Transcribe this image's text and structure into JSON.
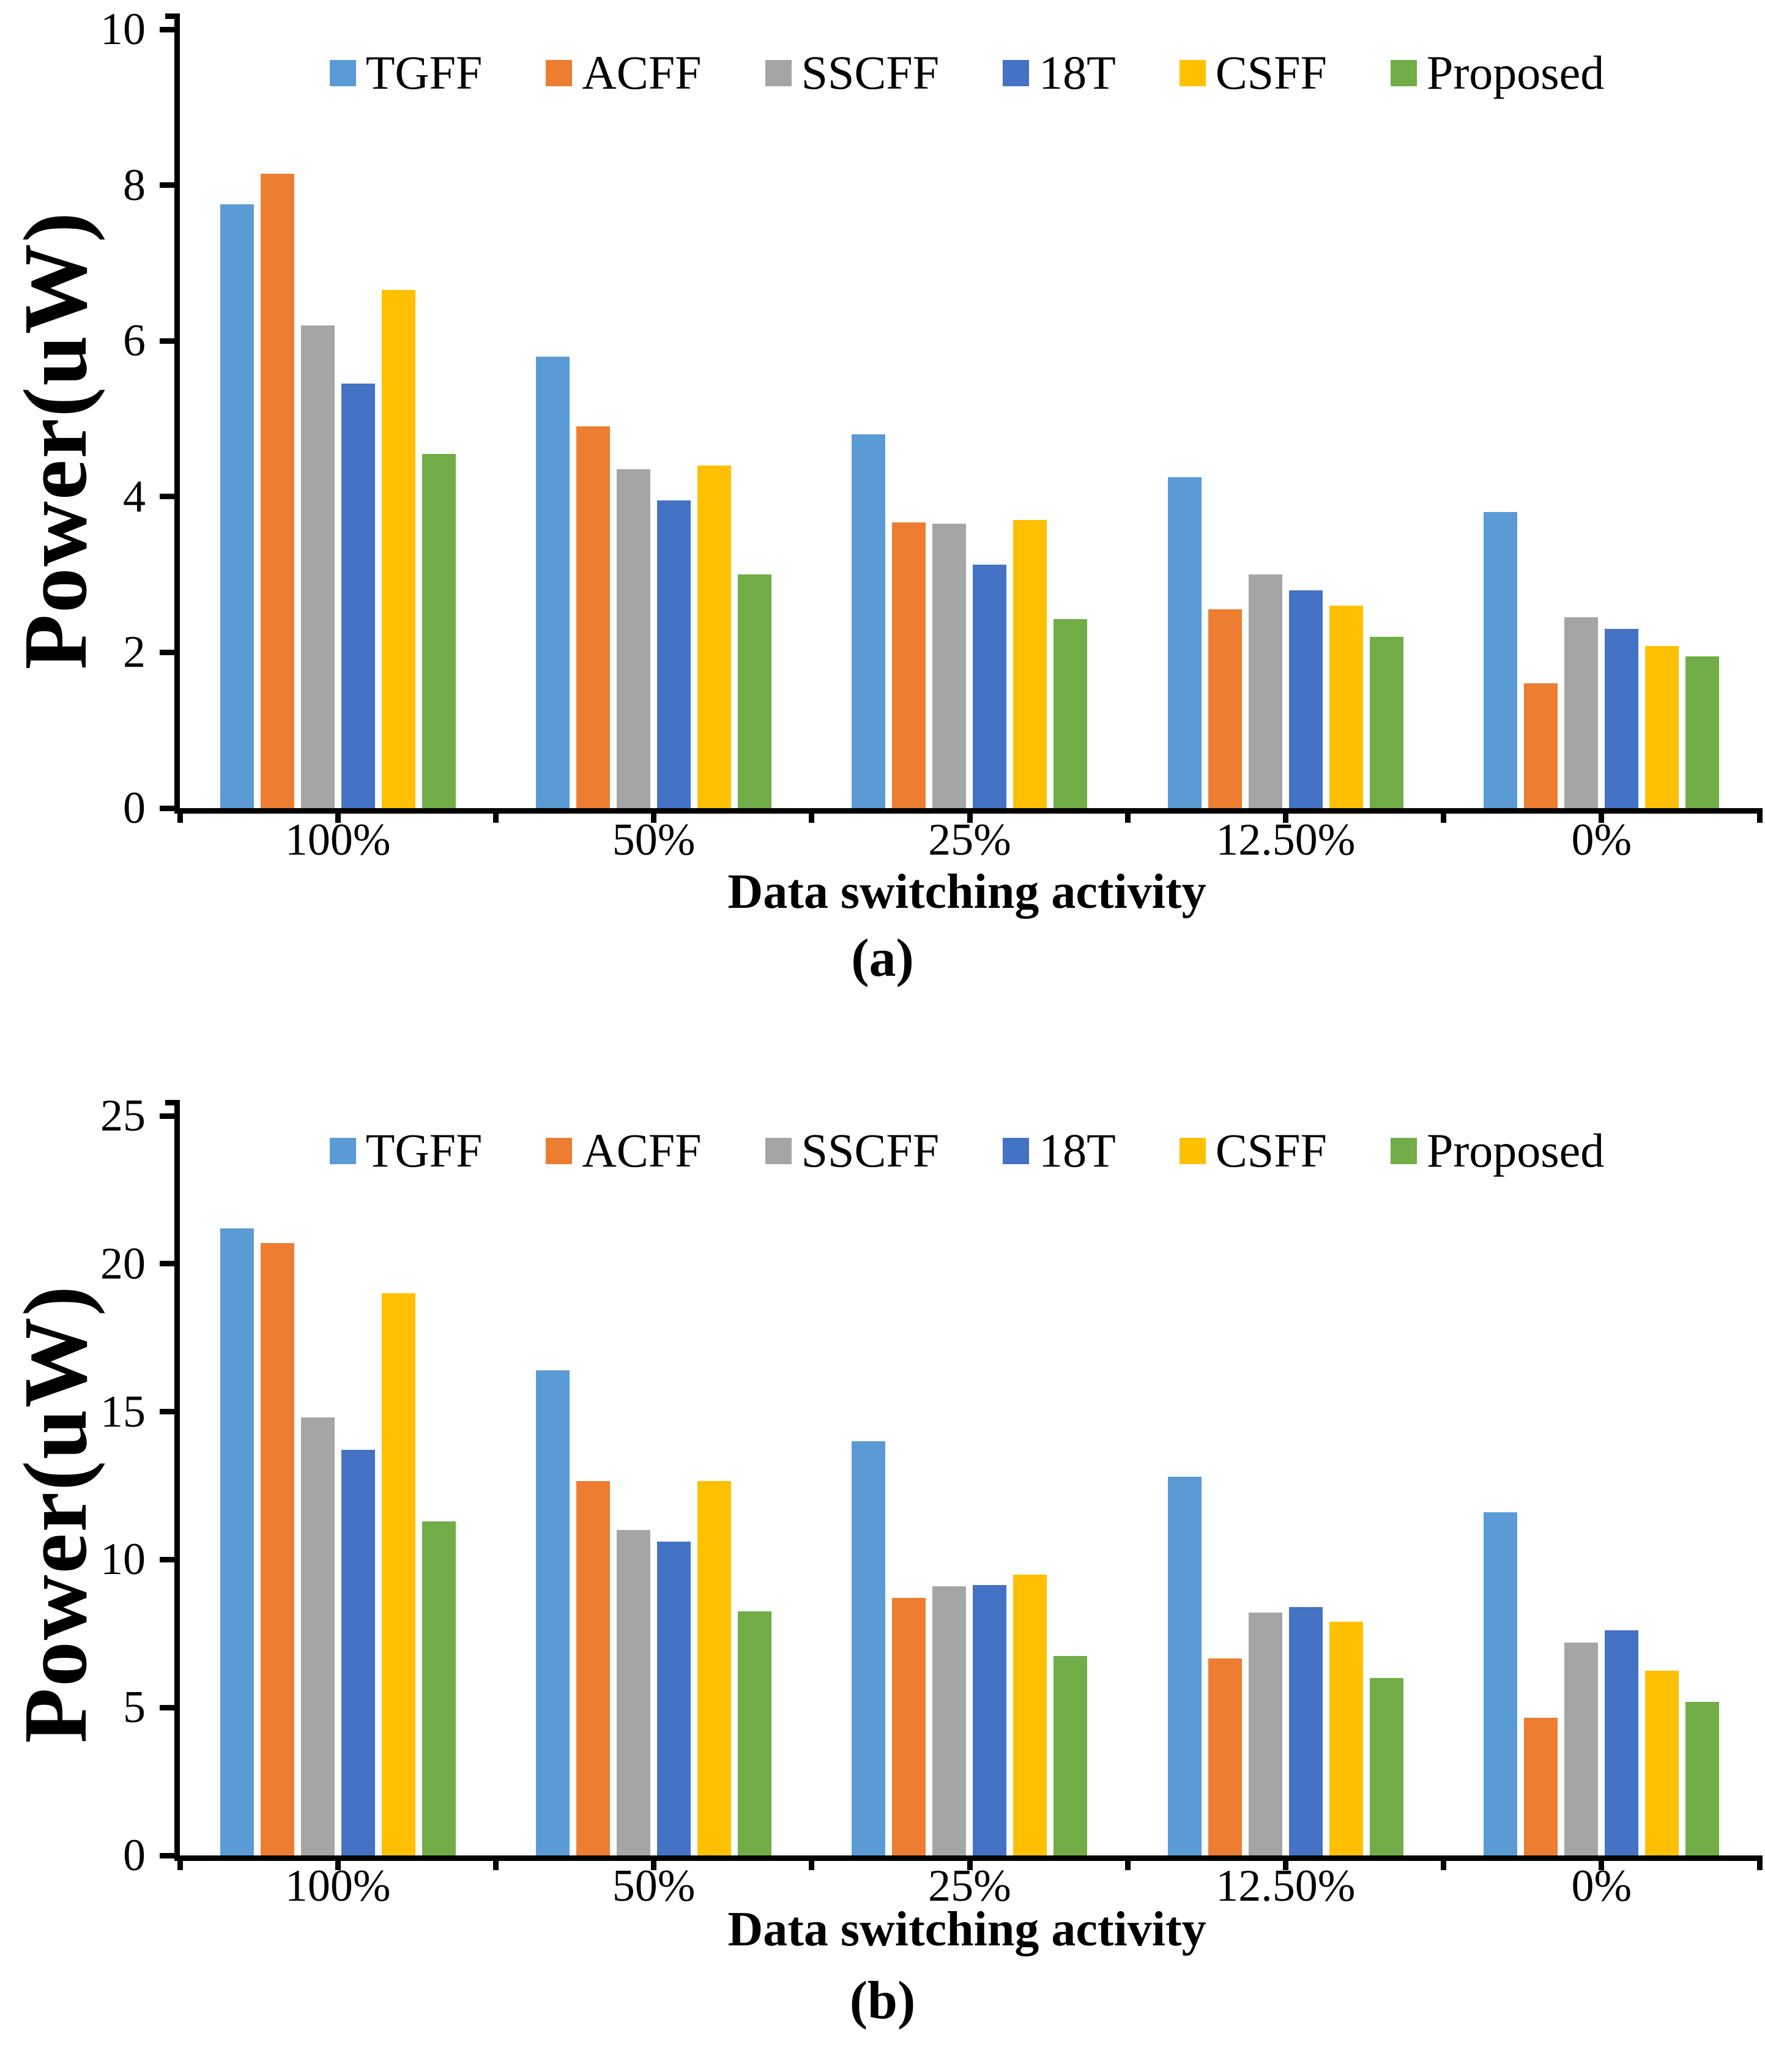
{
  "figure": {
    "background": "#ffffff",
    "text_color": "#000000",
    "axis_color": "#000000"
  },
  "chart_data": [
    {
      "type": "bar",
      "panel": "a",
      "caption": "(a)",
      "xlabel": "Data switching activity",
      "ylabel": "Power(uW)",
      "categories": [
        "100%",
        "50%",
        "25%",
        "12.50%",
        "0%"
      ],
      "ylim": [
        0,
        10
      ],
      "yticks": [
        "0",
        "2",
        "4",
        "6",
        "8",
        "10"
      ],
      "grid": false,
      "legend_position": "top-center",
      "legend_entries": [
        "TGFF",
        "ACFF",
        "SSCFF",
        "18T",
        "CSFF",
        "Proposed"
      ],
      "series": [
        {
          "name": "TGFF",
          "color": "#5B9BD5",
          "values": [
            7.75,
            5.8,
            4.8,
            4.25,
            3.8
          ]
        },
        {
          "name": "ACFF",
          "color": "#ED7D31",
          "values": [
            8.15,
            4.9,
            3.67,
            2.55,
            1.6
          ]
        },
        {
          "name": "SSCFF",
          "color": "#A5A5A5",
          "values": [
            6.2,
            4.35,
            3.65,
            3.0,
            2.45
          ]
        },
        {
          "name": "18T",
          "color": "#4472C4",
          "values": [
            5.45,
            3.95,
            3.13,
            2.8,
            2.3
          ]
        },
        {
          "name": "CSFF",
          "color": "#FFC000",
          "values": [
            6.65,
            4.4,
            3.7,
            2.6,
            2.08
          ]
        },
        {
          "name": "Proposed",
          "color": "#70AD47",
          "values": [
            4.55,
            3.0,
            2.43,
            2.2,
            1.95
          ]
        }
      ]
    },
    {
      "type": "bar",
      "panel": "b",
      "caption": "(b)",
      "xlabel": "Data switching activity",
      "ylabel": "Power(uW)",
      "categories": [
        "100%",
        "50%",
        "25%",
        "12.50%",
        "0%"
      ],
      "ylim": [
        0,
        25
      ],
      "yticks": [
        "0",
        "5",
        "10",
        "15",
        "20",
        "25"
      ],
      "grid": false,
      "legend_position": "top-center",
      "legend_entries": [
        "TGFF",
        "ACFF",
        "SSCFF",
        "18T",
        "CSFF",
        "Proposed"
      ],
      "series": [
        {
          "name": "TGFF",
          "color": "#5B9BD5",
          "values": [
            21.2,
            16.4,
            14.0,
            12.8,
            11.6
          ]
        },
        {
          "name": "ACFF",
          "color": "#ED7D31",
          "values": [
            20.7,
            12.65,
            8.7,
            6.65,
            4.65
          ]
        },
        {
          "name": "SSCFF",
          "color": "#A5A5A5",
          "values": [
            14.8,
            11.0,
            9.1,
            8.2,
            7.2
          ]
        },
        {
          "name": "18T",
          "color": "#4472C4",
          "values": [
            13.7,
            10.6,
            9.15,
            8.4,
            7.6
          ]
        },
        {
          "name": "CSFF",
          "color": "#FFC000",
          "values": [
            19.0,
            12.65,
            9.5,
            7.9,
            6.25
          ]
        },
        {
          "name": "Proposed",
          "color": "#70AD47",
          "values": [
            11.3,
            8.25,
            6.75,
            6.0,
            5.2
          ]
        }
      ]
    }
  ]
}
